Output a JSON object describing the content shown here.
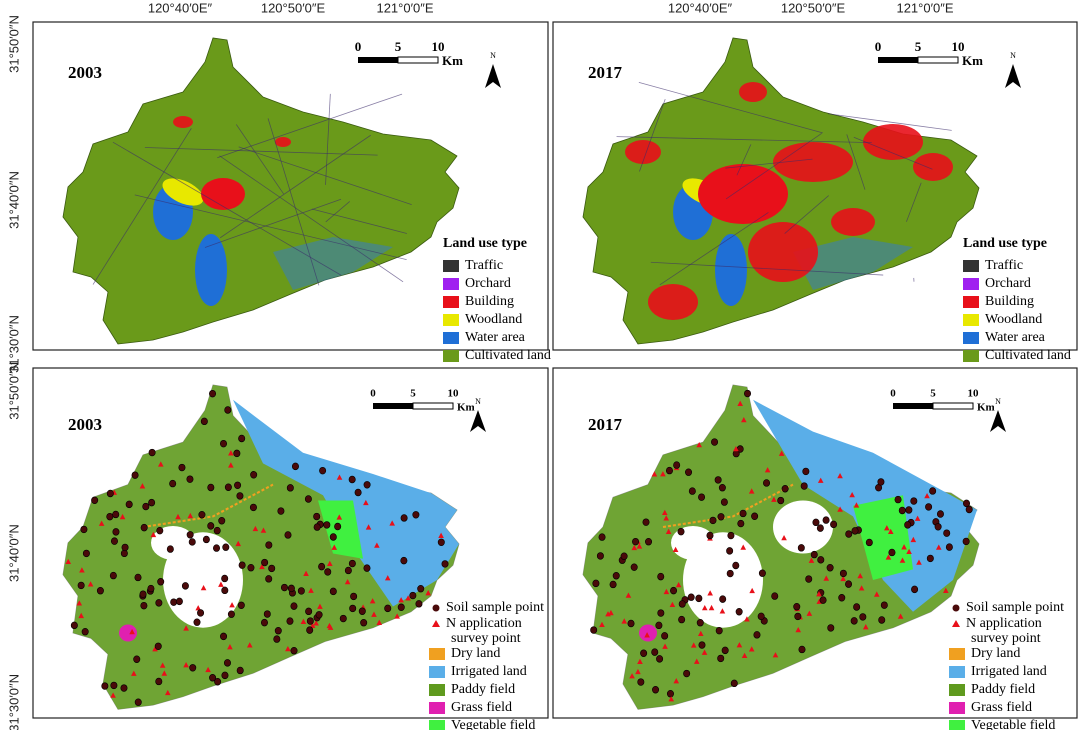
{
  "panels": [
    {
      "year": "2003",
      "top_labels": [
        "120°40′0E″",
        "120°50′0″E",
        "121°0′0″E"
      ],
      "left_labels": [
        "31°50′0″N",
        "31°40′0″N",
        "31°30′0″N"
      ],
      "scale_labels": [
        "0",
        "5",
        "10"
      ],
      "scale_unit": "Km",
      "north": "N",
      "legend_title": "Land use type",
      "legend": [
        {
          "label": "Traffic",
          "color": "#333333"
        },
        {
          "label": "Orchard",
          "color": "#a020f0"
        },
        {
          "label": "Building",
          "color": "#e8101a"
        },
        {
          "label": "Woodland",
          "color": "#e8e800"
        },
        {
          "label": "Water area",
          "color": "#1f6fd6"
        },
        {
          "label": "Cultivated land",
          "color": "#6a9a1a"
        }
      ]
    },
    {
      "year": "2017",
      "top_labels": [
        "120°40′0E″",
        "120°50′0″E",
        "121°0′0″E"
      ],
      "scale_labels": [
        "0",
        "5",
        "10"
      ],
      "scale_unit": "Km",
      "north": "N",
      "legend_title": "Land use type",
      "legend": [
        {
          "label": "Traffic",
          "color": "#333333"
        },
        {
          "label": "Orchard",
          "color": "#a020f0"
        },
        {
          "label": "Building",
          "color": "#e8101a"
        },
        {
          "label": "Woodland",
          "color": "#e8e800"
        },
        {
          "label": "Water area",
          "color": "#1f6fd6"
        },
        {
          "label": "Cultivated land",
          "color": "#6a9a1a"
        }
      ]
    },
    {
      "year": "2003",
      "left_labels": [
        "31°50′0″N",
        "31°40′0″N",
        "31°30′0″N"
      ],
      "scale_labels": [
        "0",
        "5",
        "10"
      ],
      "scale_unit": "Km",
      "north": "N",
      "points": [
        {
          "label": "Soil sample point",
          "label2": null
        },
        {
          "label": "N application",
          "label2": "survey point"
        }
      ],
      "legend": [
        {
          "label": "Dry land",
          "color": "#f0a020"
        },
        {
          "label": "Irrigated land",
          "color": "#5aaee8"
        },
        {
          "label": "Paddy field",
          "color": "#5f9a1e"
        },
        {
          "label": "Grass field",
          "color": "#e020b0"
        },
        {
          "label": "Vegetable field",
          "color": "#40f040"
        }
      ]
    },
    {
      "year": "2017",
      "scale_labels": [
        "0",
        "5",
        "10"
      ],
      "scale_unit": "Km",
      "north": "N",
      "points": [
        {
          "label": "Soil sample point",
          "label2": null
        },
        {
          "label": "N application",
          "label2": "survey point"
        }
      ],
      "legend": [
        {
          "label": "Dry land",
          "color": "#f0a020"
        },
        {
          "label": "Irrigated land",
          "color": "#5aaee8"
        },
        {
          "label": "Paddy field",
          "color": "#5f9a1e"
        },
        {
          "label": "Grass field",
          "color": "#e020b0"
        },
        {
          "label": "Vegetable field",
          "color": "#40f040"
        }
      ]
    }
  ]
}
